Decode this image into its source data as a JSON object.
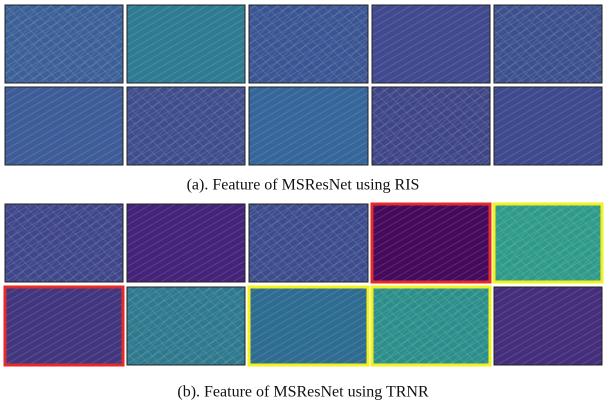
{
  "figure": {
    "panels": [
      {
        "caption": "(a). Feature of MSResNet using RIS"
      },
      {
        "caption": "(b). Feature of MSResNet using TRNR"
      }
    ]
  }
}
